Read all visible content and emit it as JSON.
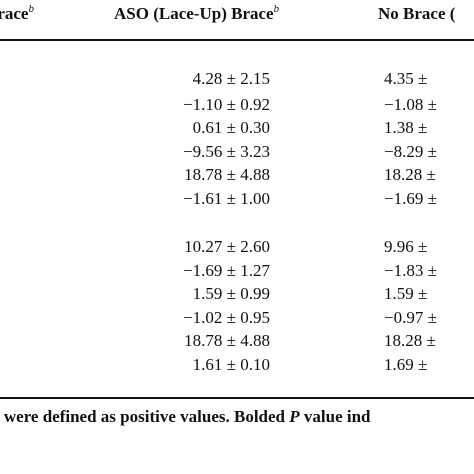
{
  "header": {
    "col1": {
      "label": "Brace",
      "sup": "b"
    },
    "col2": {
      "label": "ASO (Lace-Up) Brace",
      "sup": "b"
    },
    "col3": {
      "label": "No Brace ("
    }
  },
  "rows": [
    {
      "aso": "4.28 ± 2.15",
      "nobrace": "4.35 ±"
    },
    {
      "aso": "−1.10 ± 0.92",
      "nobrace": "−1.08 ±"
    },
    {
      "aso": "0.61 ± 0.30",
      "nobrace": "1.38 ±"
    },
    {
      "aso": "−9.56 ± 3.23",
      "nobrace": "−8.29 ±"
    },
    {
      "aso": "18.78 ± 4.88",
      "nobrace": "18.28 ±"
    },
    {
      "aso": "−1.61 ± 1.00",
      "nobrace": "−1.69 ±"
    },
    {
      "aso": "10.27 ± 2.60",
      "nobrace": "9.96 ±"
    },
    {
      "aso": "−1.69 ± 1.27",
      "nobrace": "−1.83 ±"
    },
    {
      "aso": "1.59 ± 0.99",
      "nobrace": "1.59 ±"
    },
    {
      "aso": "−1.02 ± 0.95",
      "nobrace": "−0.97 ±"
    },
    {
      "aso": "18.78 ± 4.88",
      "nobrace": "18.28 ±"
    },
    {
      "aso": "1.61 ± 0.10",
      "nobrace": "1.69 ±"
    }
  ],
  "footnote": {
    "part1": "s were defined as positive values. Bolded ",
    "p": "P",
    "part2": " value ind"
  }
}
